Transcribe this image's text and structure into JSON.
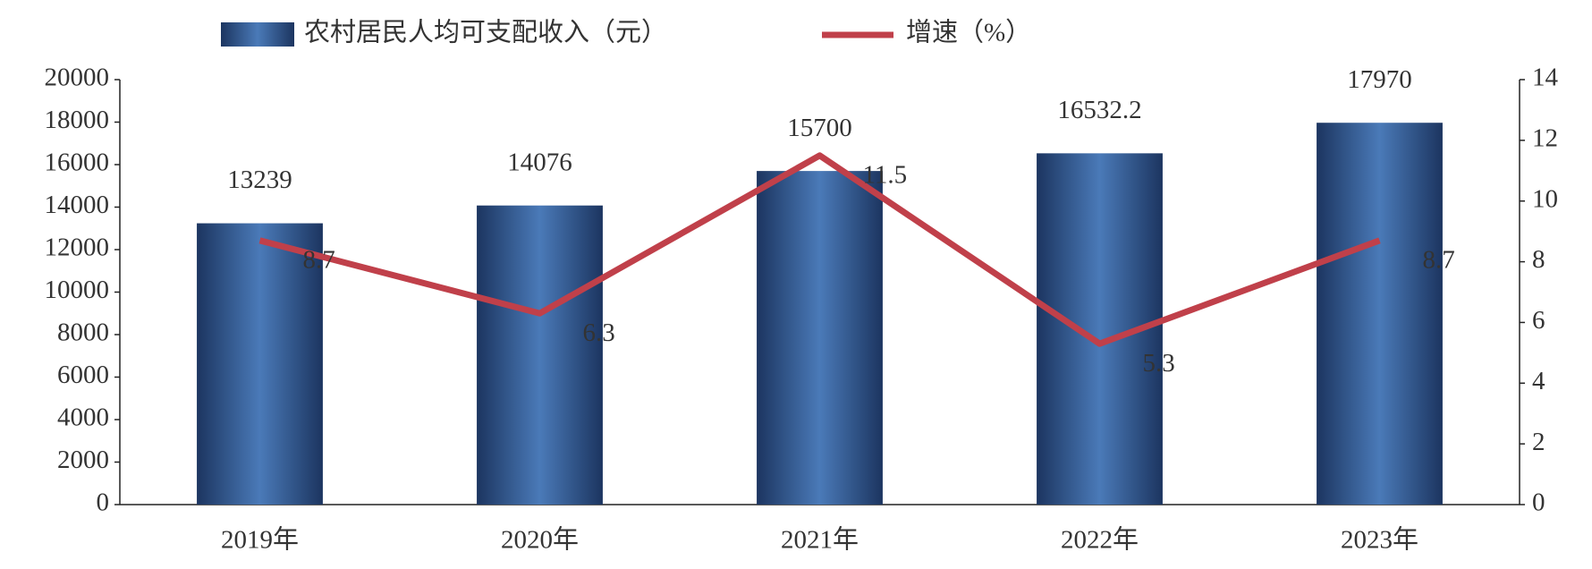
{
  "chart_data": {
    "type": "bar_line",
    "categories": [
      "2019年",
      "2020年",
      "2021年",
      "2022年",
      "2023年"
    ],
    "series": [
      {
        "name": "农村居民人均可支配收入（元）",
        "color": "#4a7ab8",
        "type": "bar",
        "values": [
          13239,
          14076,
          15700,
          16532.2,
          17970
        ]
      },
      {
        "name": "增速（%）",
        "color": "#c0404a",
        "type": "line",
        "axis": "y2",
        "values": [
          8.7,
          6.3,
          11.5,
          5.3,
          8.7
        ]
      }
    ],
    "ylim": [
      0,
      20000
    ],
    "yticks": [
      0,
      2000,
      4000,
      6000,
      8000,
      10000,
      12000,
      14000,
      16000,
      18000,
      20000
    ],
    "y2lim": [
      0,
      14
    ],
    "y2ticks": [
      0,
      2,
      4,
      6,
      8,
      10,
      12,
      14
    ],
    "grid": false,
    "legend": "top"
  }
}
